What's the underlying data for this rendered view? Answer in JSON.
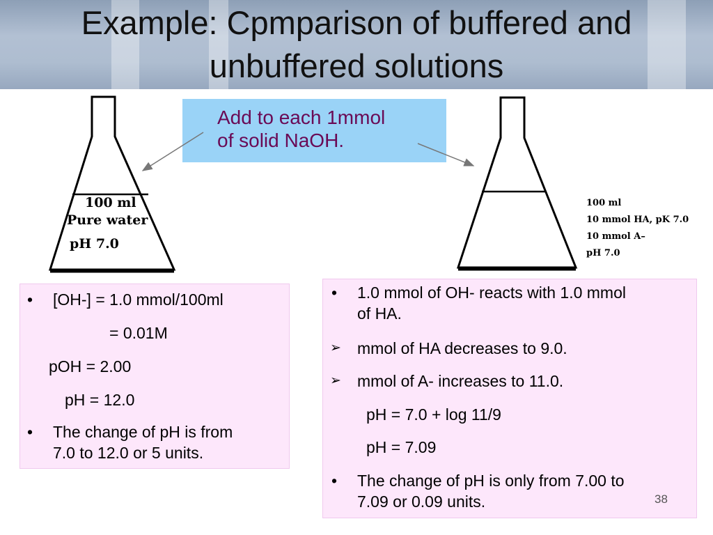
{
  "title": {
    "line1": "Example: Cpmparison of buffered and",
    "line2": "unbuffered solutions"
  },
  "callout": {
    "line1": "Add to each 1mmol",
    "line2": "of solid NaOH."
  },
  "left_flask": {
    "label1": "100 ml",
    "label2": "Pure water",
    "label3": "pH 7.0"
  },
  "right_flask": {
    "label1": "100 ml",
    "label2": "10 mmol HA, pK 7.0",
    "label3": "10 mmol A–",
    "label4": "pH 7.0"
  },
  "left_box": {
    "line1": "[OH-] = 1.0 mmol/100ml",
    "line2": "= 0.01M",
    "line3": "pOH = 2.00",
    "line4": "pH = 12.0",
    "line5a": "The change of pH is from",
    "line5b": "7.0 to 12.0 or 5 units."
  },
  "right_box": {
    "line1a": "1.0 mmol of OH- reacts with 1.0 mmol",
    "line1b": "of HA.",
    "line2": "mmol of HA decreases to 9.0.",
    "line3": "mmol of A- increases to 11.0.",
    "line4": "pH = 7.0 + log 11/9",
    "line5": "pH = 7.09",
    "line6a": "The change of pH is only from 7.00 to",
    "line6b": "7.09 or 0.09 units."
  },
  "glyphs": {
    "bullet": "•",
    "arrow": "➢"
  },
  "page_number": "38",
  "colors": {
    "callout_bg": "#9ad3f7",
    "callout_text": "#6a0a55",
    "box_bg": "#fde7fb"
  }
}
